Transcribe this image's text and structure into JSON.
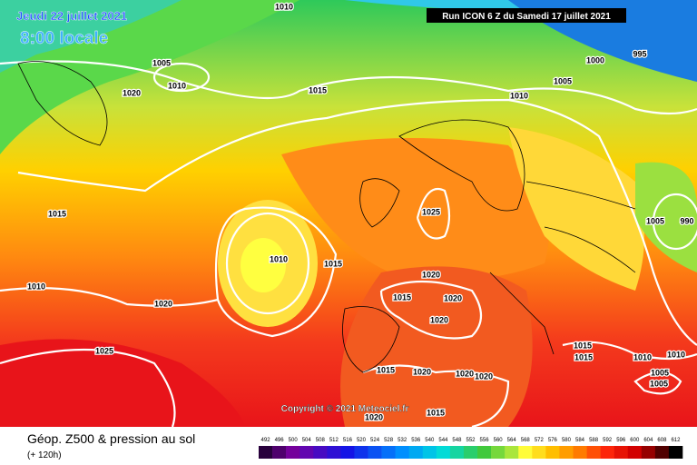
{
  "header": {
    "date": "Jeudi 22 juillet 2021",
    "time": "8:00 locale",
    "run": "Run ICON 6 Z du Samedi 17 juillet 2021"
  },
  "copyright": "Copyright © 2021 Meteociel.fr",
  "legend": {
    "title": "Géop. Z500 & pression au sol",
    "lead": "(+ 120h)",
    "scale": [
      492,
      496,
      500,
      504,
      508,
      512,
      516,
      520,
      524,
      528,
      532,
      536,
      540,
      544,
      548,
      552,
      556,
      560,
      564,
      568,
      572,
      576,
      580,
      584,
      588,
      592,
      596,
      600,
      604,
      608,
      612
    ]
  },
  "isobar_labels": [
    "1010",
    "1005",
    "1010",
    "1020",
    "1015",
    "1000",
    "995",
    "1005",
    "1010",
    "1015",
    "1010",
    "1025",
    "1010",
    "1015",
    "1020",
    "1015",
    "1020",
    "1020",
    "1020",
    "1025",
    "1015",
    "1015",
    "1010",
    "1010",
    "1005",
    "1005",
    "1015",
    "1020",
    "1020",
    "1020",
    "1020",
    "1015",
    "1005",
    "990"
  ]
}
